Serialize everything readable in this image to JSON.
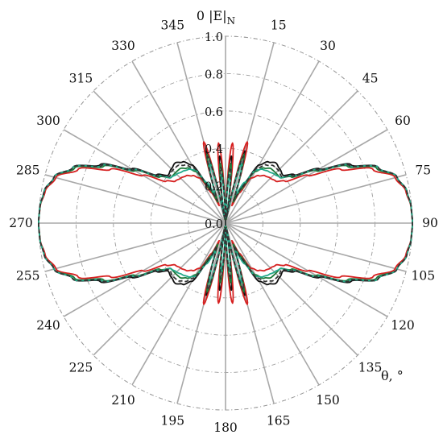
{
  "chart_data": {
    "type": "polar-line",
    "axis_title": "0 |E|",
    "axis_title_subscript": "N",
    "theta_label": "θ, °",
    "radial_range": [
      0,
      1.0
    ],
    "radial_ticks": [
      "0.0",
      "0.2",
      "0.4",
      "0.6",
      "0.8",
      "1.0"
    ],
    "angle_ticks": [
      "0",
      "15",
      "30",
      "45",
      "60",
      "75",
      "90",
      "105",
      "120",
      "135",
      "150",
      "165",
      "180",
      "195",
      "210",
      "225",
      "240",
      "255",
      "270",
      "285",
      "300",
      "315",
      "330",
      "345"
    ],
    "grid": true,
    "theta": [
      0,
      5,
      10,
      15,
      20,
      25,
      30,
      35,
      40,
      45,
      50,
      55,
      60,
      65,
      70,
      75,
      80,
      85,
      90
    ],
    "series": [
      {
        "color": "#111111",
        "dash": "solid",
        "r": [
          0.0,
          0.36,
          0.04,
          0.4,
          0.14,
          0.22,
          0.36,
          0.4,
          0.42,
          0.41,
          0.4,
          0.45,
          0.58,
          0.74,
          0.87,
          0.95,
          0.985,
          0.997,
          1.0
        ]
      },
      {
        "color": "#d62020",
        "dash": "solid",
        "r": [
          0.0,
          0.43,
          0.02,
          0.45,
          0.1,
          0.18,
          0.28,
          0.31,
          0.33,
          0.34,
          0.35,
          0.39,
          0.51,
          0.68,
          0.84,
          0.94,
          0.98,
          0.996,
          1.0
        ]
      },
      {
        "color": "#1f7a3a",
        "dash": "solid",
        "r": [
          0.0,
          0.32,
          0.02,
          0.38,
          0.12,
          0.2,
          0.32,
          0.36,
          0.38,
          0.38,
          0.38,
          0.43,
          0.56,
          0.72,
          0.86,
          0.95,
          0.985,
          0.997,
          1.0
        ]
      },
      {
        "color": "#22a98a",
        "dash": "solid",
        "r": [
          0.0,
          0.26,
          0.03,
          0.33,
          0.16,
          0.24,
          0.33,
          0.35,
          0.36,
          0.37,
          0.38,
          0.44,
          0.57,
          0.73,
          0.87,
          0.95,
          0.985,
          0.997,
          1.0
        ]
      },
      {
        "color": "#333333",
        "dash": "dashed",
        "r": [
          0.0,
          0.3,
          0.03,
          0.37,
          0.13,
          0.21,
          0.34,
          0.38,
          0.4,
          0.4,
          0.39,
          0.44,
          0.57,
          0.73,
          0.87,
          0.95,
          0.985,
          0.997,
          1.0
        ]
      }
    ]
  }
}
